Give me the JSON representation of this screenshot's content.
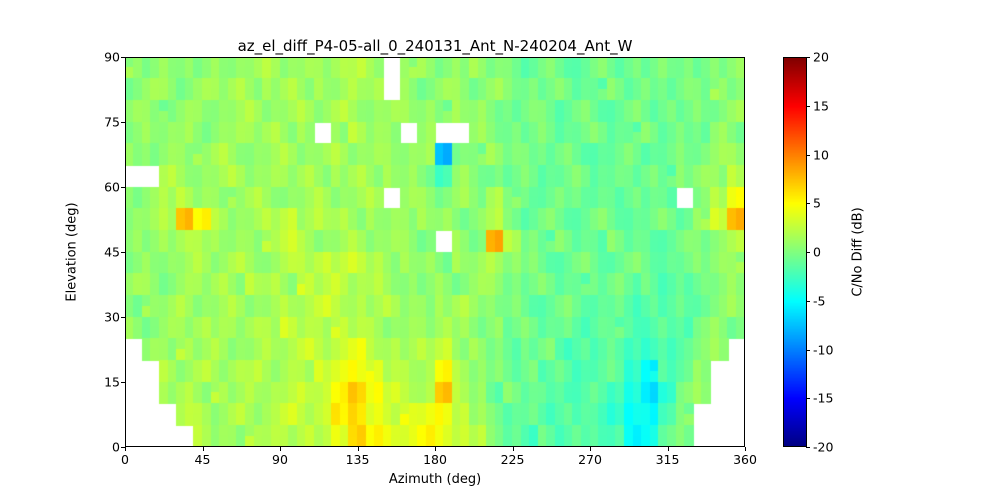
{
  "figure": {
    "background": "#ffffff"
  },
  "chart_data": {
    "type": "heatmap",
    "title": "az_el_diff_P4-05-all_0_240131_Ant_N-240204_Ant_W",
    "xlabel": "Azimuth (deg)",
    "ylabel": "Elevation (deg)",
    "colorbar_label": "C/No Diff (dB)",
    "colormap": "jet",
    "xlim": [
      0,
      360
    ],
    "ylim": [
      0,
      90
    ],
    "clim": [
      -20,
      20
    ],
    "x_ticks": [
      0,
      45,
      90,
      135,
      180,
      225,
      270,
      315,
      360
    ],
    "y_ticks": [
      0,
      15,
      30,
      45,
      60,
      75,
      90
    ],
    "colorbar_ticks": [
      20,
      15,
      10,
      5,
      0,
      -5,
      -10,
      -15,
      -20
    ],
    "grid_note": "C/No difference (dB). Rows top-to-bottom = elevation 90 deg down to 0 deg in 5 deg bins; columns left-to-right = azimuth 0 to 360 deg in 10 deg bins; null = no data (white).",
    "values": [
      [
        1,
        0,
        1,
        1,
        0,
        1,
        1,
        1,
        2,
        1,
        1,
        1,
        2,
        2,
        1,
        null,
        1,
        1,
        0,
        1,
        1,
        0,
        0,
        -1,
        0,
        -1,
        -1,
        0,
        -1,
        0,
        -1,
        0,
        0,
        -1,
        0,
        1
      ],
      [
        0,
        1,
        1,
        0,
        1,
        1,
        2,
        1,
        1,
        2,
        1,
        1,
        1,
        2,
        2,
        null,
        1,
        0,
        1,
        1,
        0,
        1,
        0,
        0,
        -1,
        0,
        -1,
        -1,
        0,
        -1,
        0,
        -1,
        0,
        0,
        1,
        0
      ],
      [
        1,
        1,
        0,
        1,
        1,
        1,
        1,
        2,
        1,
        1,
        2,
        1,
        2,
        1,
        1,
        1,
        1,
        1,
        0,
        1,
        1,
        0,
        -1,
        0,
        0,
        -1,
        0,
        -1,
        -1,
        0,
        -1,
        0,
        -1,
        0,
        0,
        1
      ],
      [
        0,
        1,
        1,
        1,
        0,
        1,
        1,
        1,
        2,
        1,
        1,
        null,
        1,
        2,
        1,
        1,
        null,
        1,
        null,
        null,
        1,
        0,
        0,
        -1,
        0,
        -1,
        -1,
        0,
        -1,
        -1,
        0,
        -1,
        0,
        -1,
        1,
        0
      ],
      [
        1,
        0,
        1,
        1,
        1,
        2,
        1,
        1,
        1,
        2,
        1,
        1,
        2,
        1,
        1,
        1,
        1,
        1,
        -8,
        0,
        0,
        1,
        0,
        0,
        -1,
        0,
        -1,
        -1,
        -1,
        0,
        -1,
        -1,
        0,
        0,
        1,
        1
      ],
      [
        null,
        null,
        2,
        1,
        1,
        1,
        2,
        1,
        1,
        1,
        2,
        1,
        1,
        2,
        1,
        1,
        1,
        0,
        -2,
        1,
        0,
        0,
        -1,
        0,
        -1,
        -1,
        0,
        -1,
        -1,
        -1,
        0,
        -1,
        0,
        1,
        1,
        2
      ],
      [
        0,
        1,
        2,
        2,
        1,
        1,
        1,
        2,
        1,
        1,
        1,
        2,
        1,
        1,
        2,
        null,
        1,
        1,
        0,
        1,
        0,
        2,
        0,
        -1,
        -1,
        0,
        -1,
        -1,
        -1,
        0,
        -1,
        -1,
        null,
        0,
        2,
        5
      ],
      [
        1,
        1,
        2,
        8,
        5,
        2,
        1,
        1,
        2,
        3,
        1,
        2,
        2,
        1,
        1,
        1,
        1,
        1,
        1,
        0,
        1,
        2,
        0,
        -1,
        0,
        -1,
        -1,
        0,
        -1,
        -1,
        -1,
        0,
        -1,
        1,
        3,
        8
      ],
      [
        1,
        0,
        1,
        2,
        2,
        1,
        1,
        1,
        2,
        3,
        2,
        1,
        1,
        2,
        1,
        1,
        1,
        0,
        null,
        1,
        0,
        8,
        2,
        0,
        -1,
        0,
        -1,
        -1,
        0,
        -1,
        -1,
        -1,
        0,
        0,
        1,
        2
      ],
      [
        0,
        1,
        1,
        1,
        2,
        1,
        2,
        1,
        1,
        2,
        2,
        3,
        2,
        3,
        2,
        1,
        1,
        1,
        0,
        1,
        1,
        2,
        1,
        0,
        -1,
        -1,
        0,
        -1,
        -1,
        0,
        -1,
        -1,
        -1,
        0,
        1,
        1
      ],
      [
        1,
        1,
        0,
        1,
        1,
        2,
        1,
        2,
        2,
        1,
        3,
        2,
        3,
        2,
        2,
        1,
        1,
        0,
        1,
        0,
        1,
        1,
        0,
        -1,
        0,
        -1,
        -1,
        -1,
        0,
        -1,
        -1,
        -2,
        -1,
        0,
        0,
        1
      ],
      [
        0,
        1,
        1,
        2,
        1,
        1,
        2,
        1,
        1,
        2,
        2,
        3,
        2,
        2,
        1,
        2,
        1,
        1,
        1,
        2,
        1,
        0,
        0,
        -1,
        -1,
        0,
        -1,
        -1,
        -1,
        -2,
        -1,
        -2,
        -1,
        -1,
        0,
        1
      ],
      [
        1,
        0,
        1,
        1,
        2,
        1,
        1,
        2,
        2,
        3,
        2,
        2,
        3,
        2,
        2,
        1,
        1,
        1,
        2,
        1,
        0,
        1,
        -1,
        0,
        -1,
        -1,
        -2,
        -1,
        -1,
        -2,
        -2,
        -1,
        -2,
        0,
        1,
        0
      ],
      [
        null,
        1,
        1,
        2,
        1,
        2,
        1,
        1,
        2,
        2,
        3,
        2,
        3,
        4,
        2,
        2,
        1,
        2,
        3,
        1,
        1,
        0,
        -1,
        -1,
        0,
        -2,
        -1,
        -2,
        -1,
        -2,
        -3,
        -2,
        -1,
        0,
        1,
        null
      ],
      [
        null,
        null,
        2,
        1,
        2,
        1,
        2,
        2,
        1,
        2,
        2,
        3,
        4,
        5,
        4,
        2,
        2,
        2,
        5,
        2,
        1,
        0,
        -1,
        0,
        -2,
        -1,
        -2,
        -2,
        -1,
        -3,
        -5,
        -2,
        -1,
        1,
        null,
        null
      ],
      [
        null,
        null,
        1,
        2,
        1,
        2,
        1,
        2,
        2,
        2,
        3,
        3,
        5,
        7,
        5,
        3,
        2,
        2,
        7,
        2,
        1,
        -1,
        0,
        -1,
        -1,
        -2,
        -2,
        -1,
        -2,
        -4,
        -6,
        -3,
        0,
        1,
        null,
        null
      ],
      [
        null,
        null,
        null,
        2,
        2,
        1,
        2,
        1,
        2,
        3,
        2,
        3,
        6,
        6,
        4,
        3,
        4,
        4,
        5,
        3,
        1,
        0,
        -1,
        -1,
        -2,
        -1,
        -2,
        -2,
        -3,
        -5,
        -5,
        -2,
        0,
        null,
        null,
        null
      ],
      [
        null,
        null,
        null,
        null,
        2,
        1,
        1,
        2,
        2,
        2,
        3,
        2,
        4,
        7,
        5,
        4,
        4,
        5,
        4,
        3,
        2,
        0,
        -1,
        -2,
        -1,
        -2,
        -1,
        -2,
        -2,
        -5,
        -4,
        -1,
        0,
        null,
        null,
        null
      ]
    ]
  }
}
